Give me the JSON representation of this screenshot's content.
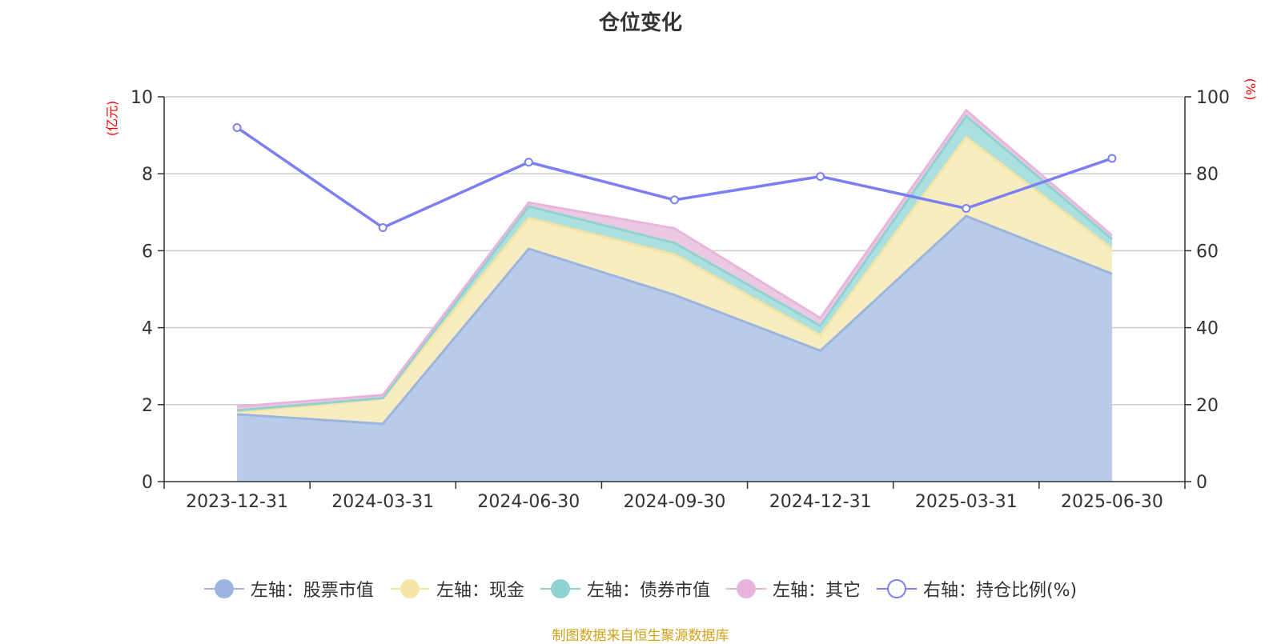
{
  "title": "仓位变化",
  "left_unit": "(亿元)",
  "right_unit": "(%)",
  "source": "制图数据来自恒生聚源数据库",
  "chart_data": {
    "type": "area",
    "categories": [
      "2023-12-31",
      "2024-03-31",
      "2024-06-30",
      "2024-09-30",
      "2024-12-31",
      "2025-03-31",
      "2025-06-30"
    ],
    "left_axis": {
      "min": 0,
      "max": 10,
      "ticks": [
        0,
        2,
        4,
        6,
        8,
        10
      ]
    },
    "right_axis": {
      "min": 0,
      "max": 100,
      "ticks": [
        0,
        20,
        40,
        60,
        80,
        100
      ]
    },
    "grid": true,
    "legend_position": "bottom",
    "stacked_series": [
      {
        "name": "左轴：股票市值",
        "values": [
          1.75,
          1.5,
          6.05,
          4.85,
          3.4,
          6.9,
          5.4
        ],
        "fill": "#b8cbe9",
        "stroke": "#9bb5df",
        "legend_color": "#9bb5df"
      },
      {
        "name": "左轴：现金",
        "values": [
          0.05,
          0.65,
          0.8,
          1.05,
          0.4,
          2.05,
          0.65
        ],
        "fill": "#f8edc1",
        "stroke": "#f5e4a2",
        "legend_color": "#f5e4a2"
      },
      {
        "name": "左轴：债券市值",
        "values": [
          0.05,
          0.02,
          0.3,
          0.3,
          0.25,
          0.55,
          0.25
        ],
        "fill": "#ace0df",
        "stroke": "#8fd2d1",
        "legend_color": "#8fd2d1"
      },
      {
        "name": "左轴：其它",
        "values": [
          0.1,
          0.08,
          0.1,
          0.38,
          0.2,
          0.15,
          0.1
        ],
        "fill": "#ecc9e2",
        "stroke": "#e8b5db",
        "legend_color": "#e8b5db"
      }
    ],
    "line_series": {
      "name": "右轴：持仓比例(%)",
      "values": [
        92,
        66,
        83,
        73.2,
        79.3,
        71,
        84
      ],
      "color": "#7b7ff0"
    }
  }
}
